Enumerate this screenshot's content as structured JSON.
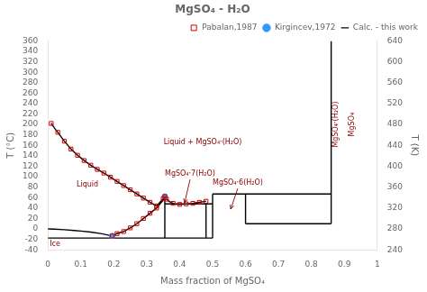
{
  "chart_data": {
    "type": "line",
    "title": "MgSO₄ - H₂O",
    "x_label": "Mass fraction of MgSO₄",
    "y_label": "T (°C)",
    "y2_label": "T (K)",
    "xlim": [
      0,
      1.0
    ],
    "ylim": [
      -40,
      360
    ],
    "y2lim": [
      240,
      640
    ],
    "xticks": [
      0,
      0.1,
      0.2,
      0.3,
      0.4,
      0.5,
      0.6,
      0.7,
      0.8,
      0.9,
      1.0
    ],
    "yticks": [
      -40,
      -20,
      0,
      20,
      40,
      60,
      80,
      100,
      120,
      140,
      160,
      180,
      200,
      220,
      240,
      260,
      280,
      300,
      320,
      340,
      360
    ],
    "y2ticks": [
      240,
      280,
      320,
      360,
      400,
      440,
      480,
      520,
      560,
      600,
      640
    ],
    "grid": false,
    "legend": "upper right",
    "series": [
      {
        "name": "Calc. - this work",
        "type": "line",
        "color": "#000000",
        "x": [
          0.01,
          0.02,
          0.03,
          0.05,
          0.07,
          0.09,
          0.11,
          0.13,
          0.15,
          0.17,
          0.19,
          0.21,
          0.23,
          0.25,
          0.27,
          0.29,
          0.31,
          0.33,
          0.35,
          0.355,
          null,
          0.0,
          0.02,
          0.05,
          0.08,
          0.1,
          0.13,
          0.16,
          0.18,
          0.195,
          null,
          0.195,
          0.21,
          0.23,
          0.25,
          0.27,
          0.29,
          0.31,
          0.33,
          0.35,
          0.355,
          null,
          0.355,
          0.36,
          0.37,
          0.38,
          0.39,
          0.4,
          0.41,
          0.42,
          0.43,
          0.44,
          0.45,
          0.46,
          0.47,
          0.48,
          null,
          0.0,
          0.5,
          null,
          0.355,
          0.5,
          null,
          0.5,
          0.86,
          null,
          0.6,
          0.86,
          null,
          0.355,
          0.355,
          null,
          0.48,
          0.48,
          null,
          0.5,
          0.5,
          null,
          0.6,
          0.6,
          null,
          0.86,
          0.86
        ],
        "y": [
          202,
          193,
          185,
          168,
          153,
          141,
          131,
          122,
          114,
          107,
          99,
          91,
          83,
          75,
          67,
          59,
          51,
          44,
          58,
          62,
          null,
          0.0,
          -0.5,
          -1.5,
          -3.0,
          -4.0,
          -6.0,
          -8.8,
          -11.5,
          -13.5,
          null,
          -13.5,
          -9,
          -5,
          2,
          10,
          20,
          30,
          40,
          55,
          62,
          null,
          62,
          57,
          52,
          49,
          47.5,
          47,
          47.5,
          48,
          48.5,
          49,
          50,
          51,
          52,
          53,
          null,
          -17.5,
          -17.5,
          null,
          48.0,
          48.0,
          null,
          67.0,
          67.0,
          null,
          10.0,
          10.0,
          null,
          -17.5,
          62.0,
          null,
          -17.5,
          48.0,
          null,
          -17.5,
          67.0,
          null,
          10.0,
          67.0,
          null,
          10.0,
          360.0
        ]
      },
      {
        "name": "Pabalan,1987",
        "type": "scatter",
        "color": "#CC0000",
        "marker": "square",
        "x": [
          0.01,
          0.03,
          0.05,
          0.07,
          0.09,
          0.11,
          0.13,
          0.15,
          0.17,
          0.19,
          0.21,
          0.23,
          0.25,
          0.27,
          0.29,
          0.31,
          0.33,
          0.35,
          0.195,
          0.21,
          0.23,
          0.25,
          0.27,
          0.29,
          0.31,
          0.33,
          0.355,
          0.36,
          0.38,
          0.4,
          0.42,
          0.44,
          0.46,
          0.48
        ],
        "y": [
          202,
          185,
          168,
          153,
          141,
          131,
          122,
          114,
          107,
          99,
          91,
          83,
          75,
          67,
          59,
          51,
          44,
          58,
          -13.5,
          -9,
          -5,
          2,
          10,
          20,
          30,
          40,
          62,
          57,
          49,
          47,
          48,
          49,
          51,
          53
        ]
      },
      {
        "name": "Kirgincev,1972",
        "type": "scatter",
        "color": "#3399FF",
        "marker": "circle",
        "x": [
          0.195,
          0.355
        ],
        "y": [
          -13.5,
          62.0
        ]
      }
    ],
    "annotations": [
      {
        "text": "Liquid + MgSO₄·(H₂O)",
        "x": 0.47,
        "y": 165,
        "color": "#8B0000"
      },
      {
        "text": "Liquid",
        "x": 0.12,
        "y": 85,
        "color": "#8B0000"
      },
      {
        "text": "MgSO₄·7(H₂O)",
        "x": 0.355,
        "y": 105,
        "arrow_to": [
          0.415,
          50
        ],
        "color": "#8B0000"
      },
      {
        "text": "MgSO₄·6(H₂O)",
        "x": 0.5,
        "y": 88,
        "arrow_to": [
          0.555,
          38
        ],
        "color": "#8B0000"
      },
      {
        "text": "Ice",
        "x": 0.008,
        "y": -30,
        "color": "#8B0000"
      }
    ],
    "vertical_annotations": [
      {
        "text": "MgSO₄·(H₂O)",
        "x": 0.875,
        "y": 200,
        "color": "#8B0000"
      },
      {
        "text": "MgSO₄",
        "x": 0.925,
        "y": 200,
        "color": "#8B0000"
      }
    ]
  }
}
